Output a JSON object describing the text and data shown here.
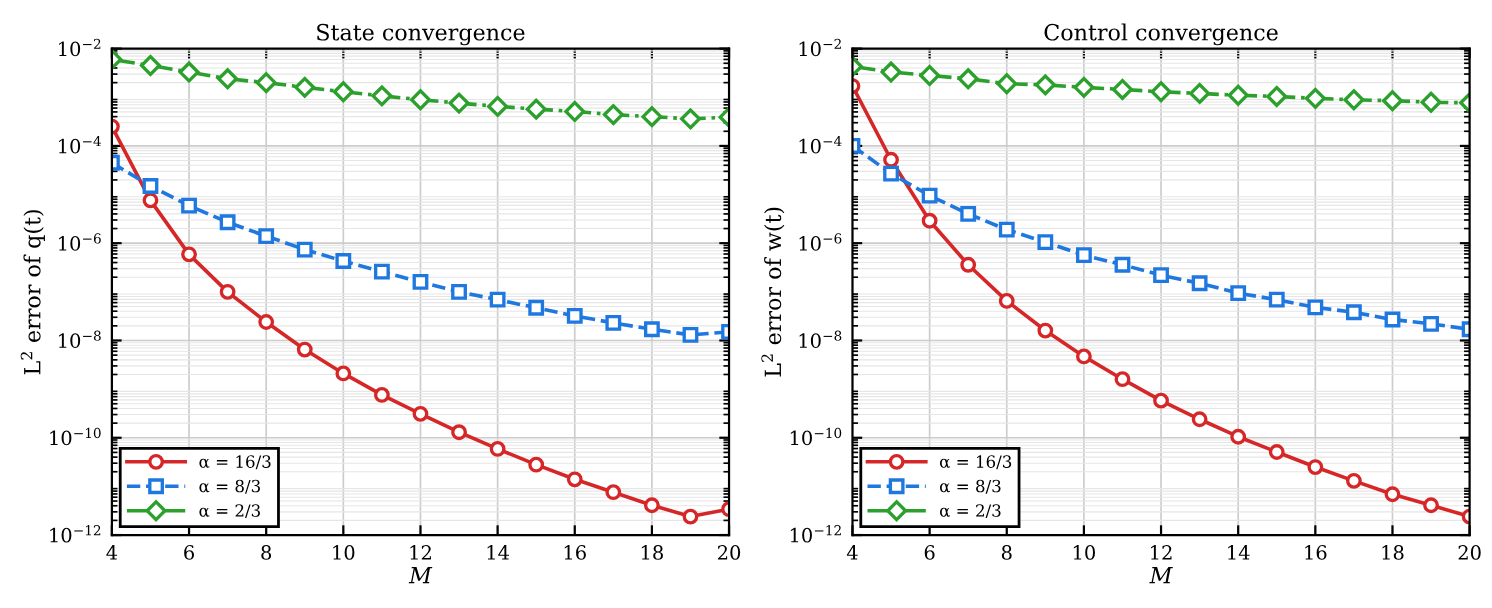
{
  "chart_data": [
    {
      "type": "line",
      "title": "State convergence",
      "xlabel": "M",
      "ylabel": "L$^{2}$ error of q(t)",
      "log": "y",
      "grid": true,
      "legend": "bottom left",
      "x": [
        4,
        5,
        6,
        7,
        8,
        9,
        10,
        11,
        12,
        13,
        14,
        15,
        16,
        17,
        18,
        19,
        20
      ],
      "xlim": [
        4,
        20
      ],
      "xticks": [
        4,
        6,
        8,
        10,
        12,
        14,
        16,
        18,
        20
      ],
      "ylim": [
        1e-12,
        0.01
      ],
      "yticks": [
        {
          "value": 1e-12,
          "label": "10$^{−12}$"
        },
        {
          "value": 1e-10,
          "label": "10$^{−10}$"
        },
        {
          "value": 1e-08,
          "label": "10$^{−8}$"
        },
        {
          "value": 1e-06,
          "label": "10$^{−6}$"
        },
        {
          "value": 0.0001,
          "label": "10$^{−4}$"
        },
        {
          "value": 0.01,
          "label": "10$^{−2}$"
        }
      ],
      "series": [
        {
          "name": "α = 16/3",
          "color": "#d62728",
          "marker": "circle",
          "line_style": "solid",
          "values": [
            0.00025,
            7.6e-06,
            5.9e-07,
            1e-07,
            2.4e-08,
            6.5e-09,
            2.1e-09,
            7.6e-10,
            3.1e-10,
            1.3e-10,
            5.9e-11,
            2.8e-11,
            1.4e-11,
            7.6e-12,
            4.1e-12,
            2.4e-12,
            3.4e-12
          ]
        },
        {
          "name": "α = 8/3",
          "color": "#1f77e0",
          "marker": "square",
          "line_style": "dashed",
          "values": [
            4.5e-05,
            1.5e-05,
            5.9e-06,
            2.7e-06,
            1.4e-06,
            7.4e-07,
            4.3e-07,
            2.6e-07,
            1.6e-07,
            1e-07,
            6.9e-08,
            4.7e-08,
            3.2e-08,
            2.3e-08,
            1.7e-08,
            1.3e-08,
            1.5e-08
          ]
        },
        {
          "name": "α = 2/3",
          "color": "#2ca02c",
          "marker": "diamond",
          "line_style": "dashdot",
          "values": [
            0.006,
            0.0045,
            0.0033,
            0.0024,
            0.002,
            0.0016,
            0.0013,
            0.00107,
            0.00089,
            0.00076,
            0.00065,
            0.00057,
            0.00051,
            0.00044,
            0.0004,
            0.00036,
            0.00039
          ]
        }
      ]
    },
    {
      "type": "line",
      "title": "Control convergence",
      "xlabel": "M",
      "ylabel": "L$^{2}$ error of w(t)",
      "log": "y",
      "grid": true,
      "legend": "bottom left",
      "x": [
        4,
        5,
        6,
        7,
        8,
        9,
        10,
        11,
        12,
        13,
        14,
        15,
        16,
        17,
        18,
        19,
        20
      ],
      "xlim": [
        4,
        20
      ],
      "xticks": [
        4,
        6,
        8,
        10,
        12,
        14,
        16,
        18,
        20
      ],
      "ylim": [
        1e-12,
        0.01
      ],
      "yticks": [
        {
          "value": 1e-12,
          "label": "10$^{−12}$"
        },
        {
          "value": 1e-10,
          "label": "10$^{−10}$"
        },
        {
          "value": 1e-08,
          "label": "10$^{−8}$"
        },
        {
          "value": 1e-06,
          "label": "10$^{−6}$"
        },
        {
          "value": 0.0001,
          "label": "10$^{−4}$"
        },
        {
          "value": 0.01,
          "label": "10$^{−2}$"
        }
      ],
      "series": [
        {
          "name": "α = 16/3",
          "color": "#d62728",
          "marker": "circle",
          "line_style": "solid",
          "values": [
            0.0017,
            5.2e-05,
            2.9e-06,
            3.6e-07,
            6.5e-08,
            1.6e-08,
            4.7e-09,
            1.6e-09,
            5.8e-10,
            2.4e-10,
            1.05e-10,
            5.1e-11,
            2.5e-11,
            1.3e-11,
            6.9e-12,
            4.1e-12,
            2.4e-12
          ]
        },
        {
          "name": "α = 8/3",
          "color": "#1f77e0",
          "marker": "square",
          "line_style": "dashed",
          "values": [
            0.0001,
            2.7e-05,
            9.5e-06,
            4e-06,
            1.9e-06,
            1.05e-06,
            5.7e-07,
            3.6e-07,
            2.2e-07,
            1.5e-07,
            9.4e-08,
            6.9e-08,
            4.8e-08,
            3.8e-08,
            2.7e-08,
            2.2e-08,
            1.7e-08
          ]
        },
        {
          "name": "α = 2/3",
          "color": "#2ca02c",
          "marker": "diamond",
          "line_style": "dashdot",
          "values": [
            0.0043,
            0.0033,
            0.0028,
            0.0024,
            0.0019,
            0.0018,
            0.0016,
            0.00145,
            0.0013,
            0.0012,
            0.0011,
            0.00104,
            0.00095,
            0.00089,
            0.00085,
            0.00079,
            0.00077
          ]
        }
      ]
    }
  ]
}
